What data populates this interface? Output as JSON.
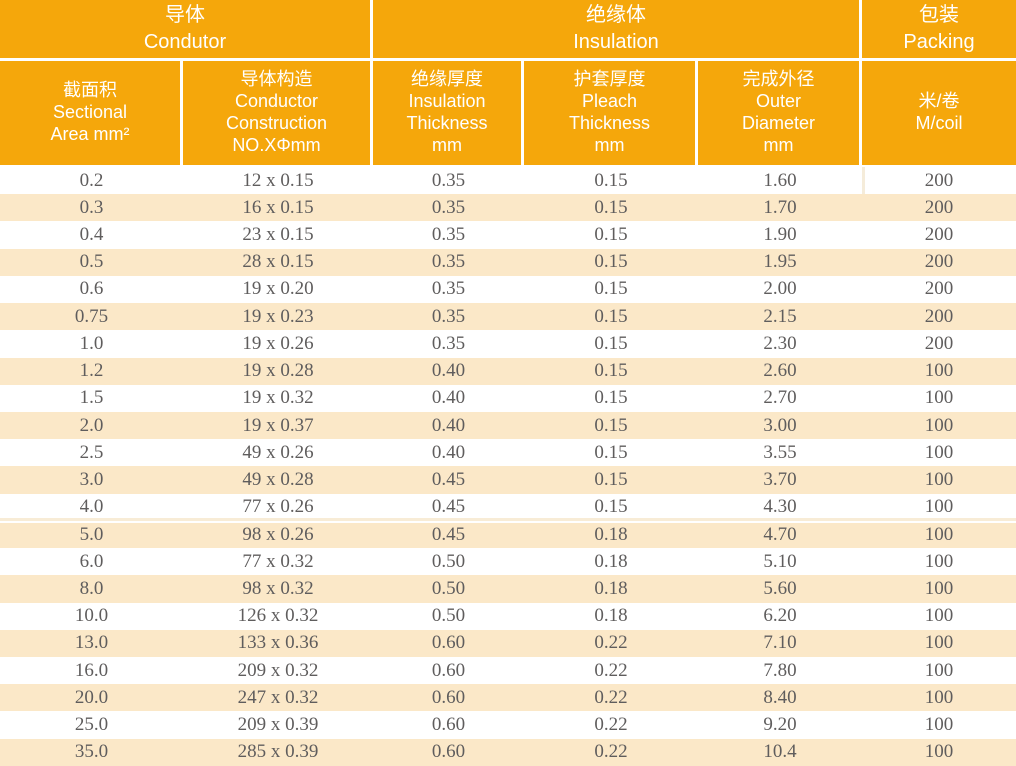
{
  "table": {
    "title_semantic": "cable-specification-table",
    "group_headers": [
      {
        "label": "导体\nCondutor"
      },
      {
        "label": "绝缘体\nInsulation"
      },
      {
        "label": "包装\nPacking"
      }
    ],
    "column_headers": [
      {
        "label": "截面积\nSectional\nArea mm²"
      },
      {
        "label": "导体构造\nConductor\nConstruction\nNO.XΦmm"
      },
      {
        "label": "绝缘厚度\nInsulation\nThickness\nmm"
      },
      {
        "label": "护套厚度\nPleach\nThickness\nmm"
      },
      {
        "label": "完成外径\nOuter\nDiameter\nmm"
      },
      {
        "label": "米/卷\nM/coil"
      }
    ],
    "rows": [
      [
        "0.2",
        "12 x 0.15",
        "0.35",
        "0.15",
        "1.60",
        "200"
      ],
      [
        "0.3",
        "16 x 0.15",
        "0.35",
        "0.15",
        "1.70",
        "200"
      ],
      [
        "0.4",
        "23 x 0.15",
        "0.35",
        "0.15",
        "1.90",
        "200"
      ],
      [
        "0.5",
        "28 x 0.15",
        "0.35",
        "0.15",
        "1.95",
        "200"
      ],
      [
        "0.6",
        "19 x 0.20",
        "0.35",
        "0.15",
        "2.00",
        "200"
      ],
      [
        "0.75",
        "19 x 0.23",
        "0.35",
        "0.15",
        "2.15",
        "200"
      ],
      [
        "1.0",
        "19 x 0.26",
        "0.35",
        "0.15",
        "2.30",
        "200"
      ],
      [
        "1.2",
        "19 x 0.28",
        "0.40",
        "0.15",
        "2.60",
        "100"
      ],
      [
        "1.5",
        "19 x 0.32",
        "0.40",
        "0.15",
        "2.70",
        "100"
      ],
      [
        "2.0",
        "19 x 0.37",
        "0.40",
        "0.15",
        "3.00",
        "100"
      ],
      [
        "2.5",
        "49 x 0.26",
        "0.40",
        "0.15",
        "3.55",
        "100"
      ],
      [
        "3.0",
        "49 x 0.28",
        "0.45",
        "0.15",
        "3.70",
        "100"
      ],
      [
        "4.0",
        "77 x 0.26",
        "0.45",
        "0.15",
        "4.30",
        "100"
      ],
      [
        "5.0",
        "98 x 0.26",
        "0.45",
        "0.18",
        "4.70",
        "100"
      ],
      [
        "6.0",
        "77 x 0.32",
        "0.50",
        "0.18",
        "5.10",
        "100"
      ],
      [
        "8.0",
        "98 x 0.32",
        "0.50",
        "0.18",
        "5.60",
        "100"
      ],
      [
        "10.0",
        "126 x 0.32",
        "0.50",
        "0.18",
        "6.20",
        "100"
      ],
      [
        "13.0",
        "133 x 0.36",
        "0.60",
        "0.22",
        "7.10",
        "100"
      ],
      [
        "16.0",
        "209 x 0.32",
        "0.60",
        "0.22",
        "7.80",
        "100"
      ],
      [
        "20.0",
        "247 x 0.32",
        "0.60",
        "0.22",
        "8.40",
        "100"
      ],
      [
        "25.0",
        "209 x 0.39",
        "0.60",
        "0.22",
        "9.20",
        "100"
      ],
      [
        "35.0",
        "285 x 0.39",
        "0.60",
        "0.22",
        "10.4",
        "100"
      ]
    ],
    "separator_before_rows": [
      13
    ],
    "colors": {
      "header_background": "#F5A70B",
      "header_text": "#FFFFFF",
      "row_shade": "#FBE8C8",
      "row_white": "#FFFFFF",
      "data_text": "#5F5D5D"
    }
  }
}
